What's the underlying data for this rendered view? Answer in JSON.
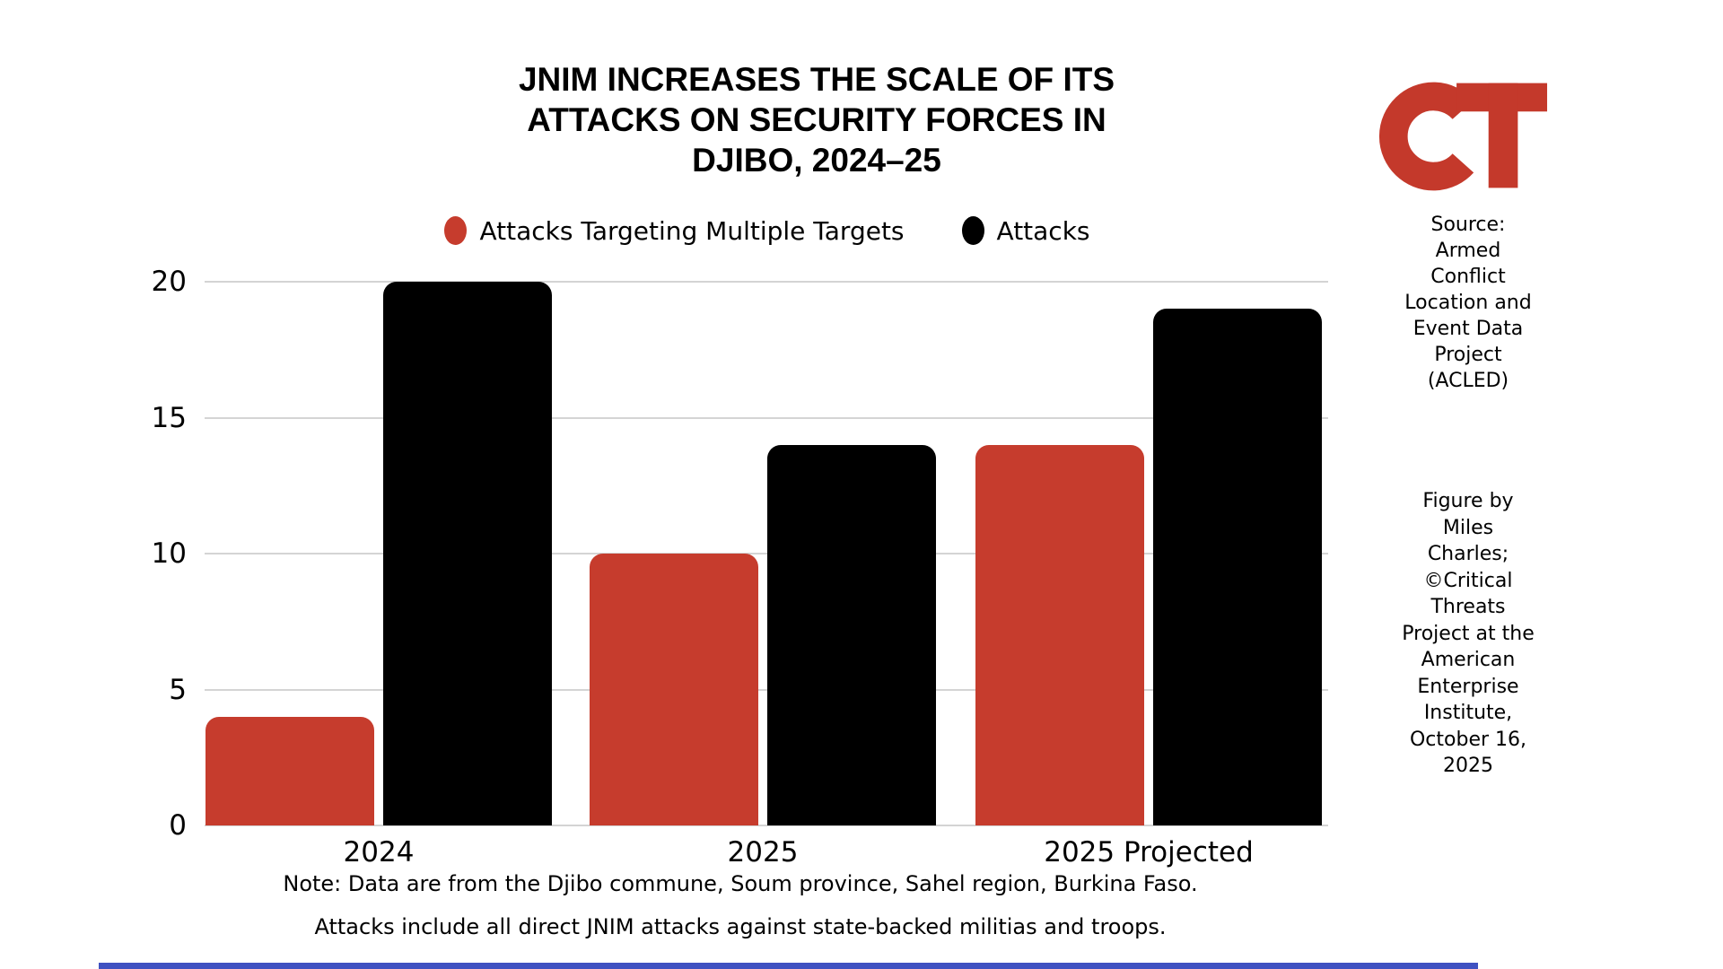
{
  "title": {
    "lines": [
      "JNIM INCREASES THE SCALE OF ITS",
      "ATTACKS ON SECURITY FORCES IN",
      "DJIBO, 2024–25"
    ]
  },
  "chart_data": {
    "type": "bar",
    "title": "JNIM INCREASES THE SCALE OF ITS ATTACKS ON SECURITY FORCES IN DJIBO, 2024–25",
    "categories": [
      "2024",
      "2025",
      "2025 Projected"
    ],
    "series": [
      {
        "name": "Attacks Targeting Multiple Targets",
        "color": "#C63C2D",
        "values": [
          4,
          10,
          14
        ]
      },
      {
        "name": "Attacks",
        "color": "#000000",
        "values": [
          20,
          14,
          19
        ]
      }
    ],
    "xlabel": "",
    "ylabel": "",
    "ylim": [
      0,
      20
    ],
    "yticks": [
      20,
      15,
      10,
      5,
      0
    ],
    "grid": true,
    "legend_position": "top"
  },
  "legend": [
    {
      "label": "Attacks Targeting Multiple Targets",
      "color": "#C63C2D"
    },
    {
      "label": "Attacks",
      "color": "#000000"
    }
  ],
  "notes": {
    "line1": "Note: Data are from the Djibo commune, Soum province, Sahel region, Burkina Faso.",
    "line2": "Attacks include all direct JNIM attacks against state-backed militias and troops."
  },
  "sidebar": {
    "logo_name": "Critical Threats CT logo",
    "logo_color": "#C4392B",
    "source_lines": [
      "Source:",
      "Armed",
      "Conflict",
      "Location and",
      "Event Data",
      "Project",
      "(ACLED)"
    ],
    "credit_lines": [
      "Figure by",
      "Miles",
      "Charles;",
      "©Critical",
      "Threats",
      "Project at the",
      "American",
      "Enterprise",
      "Institute,",
      "October 16,",
      "2025"
    ]
  },
  "colors": {
    "bar_red": "#C63C2D",
    "bar_black": "#000000",
    "grid": "#d4d4d4",
    "bottom_strip": "#3F51C1"
  }
}
